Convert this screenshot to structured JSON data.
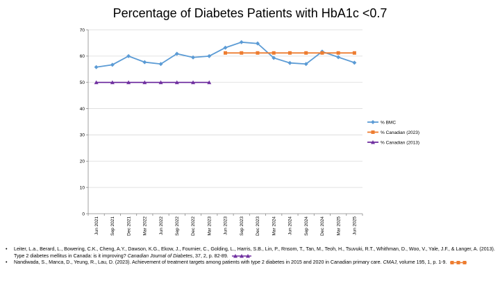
{
  "chart_data": {
    "type": "line",
    "title": "Percentage of Diabetes Patients with HbA1c <0.7",
    "categories": [
      "Jun 2021",
      "Sep 2021",
      "Dec 2021",
      "Mar 2022",
      "Jun 2022",
      "Sep 2022",
      "Dec 2022",
      "Mar 2023",
      "Jun 2023",
      "Sep 2023",
      "Dec 2023",
      "Mar 2024",
      "Jun 2024",
      "Sep 2024",
      "Dec 2024",
      "Mar 2025",
      "Jun 2025"
    ],
    "ylim": [
      0,
      70
    ],
    "yticks": [
      "0",
      "10",
      "20",
      "30",
      "40",
      "50",
      "60",
      "70"
    ],
    "grid": true,
    "legend_position": "right",
    "series": [
      {
        "name": "% BMC",
        "color": "#5b9bd5",
        "marker": "diamond",
        "values": [
          55.8,
          56.7,
          60.0,
          57.7,
          57.0,
          60.9,
          59.5,
          60.0,
          63.2,
          65.3,
          64.8,
          59.3,
          57.4,
          57.0,
          61.7,
          59.6,
          57.5
        ]
      },
      {
        "name": "% Canadian (2023)",
        "color": "#ed7d31",
        "marker": "square",
        "values": [
          null,
          null,
          null,
          null,
          null,
          null,
          null,
          null,
          61.2,
          61.2,
          61.2,
          61.2,
          61.2,
          61.2,
          61.2,
          61.2,
          61.2
        ]
      },
      {
        "name": "% Canadian (2013)",
        "color": "#7030a0",
        "marker": "triangle",
        "values": [
          50,
          50,
          50,
          50,
          50,
          50,
          50,
          50,
          null,
          null,
          null,
          null,
          null,
          null,
          null,
          null,
          null
        ]
      }
    ]
  },
  "references": [
    {
      "text": "Leiter, L.a., Berard, L., Bowering, C.K., Cheng, A.Y., Dawson, K.G., Ekow, J., Fournier, C., Golding, L., Harris, S.B., Lin, P., Rnsom, T., Tan, M., Teoh, H., Tsuvuki, R.T., Whithman, D., Woo, V., Yale, J.F., & Langer, A. (2013). Type 2 diabetes mellitus in Canada: is it improving? ",
      "journal": "Canadian Journal of Diabetes",
      "tail": ", 37, 2, p. 82-89.",
      "marker_color": "#7030a0"
    },
    {
      "text": "Nandiwada, S., Manca, D., Yeung, R., Lau, D. (2023). Achievement of treatment targets among patients with type 2 diabetes in 2015 and 2020 in Canadian primary care. ",
      "journal": "CMAJ",
      "tail": ", volume 195, 1, p. 1-9.",
      "marker_color": "#ed7d31"
    }
  ]
}
